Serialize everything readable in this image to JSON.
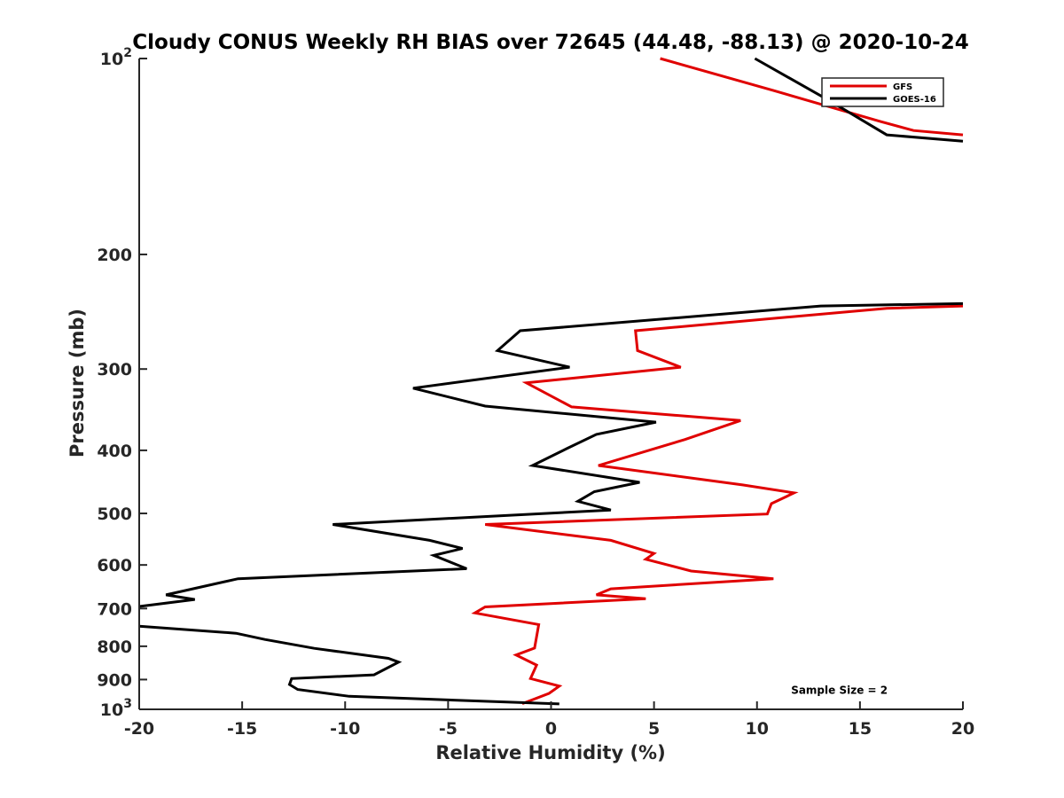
{
  "chart_data": {
    "type": "line",
    "title": "Cloudy CONUS Weekly RH BIAS over 72645 (44.48, -88.13) @ 2020-10-24",
    "xlabel": "Relative Humidity (%)",
    "ylabel": "Pressure (mb)",
    "xlim": [
      -20,
      20
    ],
    "ylim": [
      100,
      1000
    ],
    "y_scale": "log",
    "y_reversed": true,
    "grid": false,
    "legend_position": "top-right",
    "x_ticks": [
      "-20",
      "-15",
      "-10",
      "-5",
      "0",
      "5",
      "10",
      "15",
      "20"
    ],
    "y_ticks": [
      {
        "value": 100,
        "base": "10",
        "exp": "2"
      },
      {
        "value": 200,
        "label": "200"
      },
      {
        "value": 300,
        "label": "300"
      },
      {
        "value": 400,
        "label": "400"
      },
      {
        "value": 500,
        "label": "500"
      },
      {
        "value": 600,
        "label": "600"
      },
      {
        "value": 700,
        "label": "700"
      },
      {
        "value": 800,
        "label": "800"
      },
      {
        "value": 900,
        "label": "900"
      },
      {
        "value": 1000,
        "base": "10",
        "exp": "3"
      }
    ],
    "series": [
      {
        "name": "GFS",
        "color": "#e00000",
        "points": [
          [
            5.3,
            100
          ],
          [
            10.8,
            112
          ],
          [
            16.0,
            125
          ],
          [
            17.6,
            129
          ],
          [
            20,
            131
          ],
          [
            null,
            null
          ],
          [
            20,
            240
          ],
          [
            16.3,
            242
          ],
          [
            4.1,
            262
          ],
          [
            4.2,
            281
          ],
          [
            6.3,
            298
          ],
          [
            -1.2,
            315
          ],
          [
            1.0,
            343
          ],
          [
            9.2,
            360
          ],
          [
            6.5,
            385
          ],
          [
            2.3,
            422
          ],
          [
            9.3,
            452
          ],
          [
            11.8,
            465
          ],
          [
            10.7,
            483
          ],
          [
            10.5,
            501
          ],
          [
            -3.2,
            520
          ],
          [
            2.9,
            550
          ],
          [
            5.0,
            576
          ],
          [
            4.6,
            588
          ],
          [
            6.8,
            613
          ],
          [
            10.8,
            630
          ],
          [
            2.9,
            653
          ],
          [
            2.2,
            667
          ],
          [
            4.6,
            676
          ],
          [
            -3.2,
            696
          ],
          [
            -3.7,
            711
          ],
          [
            -0.6,
            741
          ],
          [
            -0.8,
            805
          ],
          [
            -1.7,
            825
          ],
          [
            -0.7,
            855
          ],
          [
            -1.0,
            897
          ],
          [
            0.4,
            921
          ],
          [
            -0.1,
            945
          ],
          [
            -1.4,
            980
          ]
        ]
      },
      {
        "name": "GOES-16",
        "color": "#000000",
        "points": [
          [
            9.9,
            100
          ],
          [
            13.5,
            116
          ],
          [
            16.3,
            131
          ],
          [
            20,
            134
          ],
          [
            null,
            null
          ],
          [
            20,
            238
          ],
          [
            13.1,
            240
          ],
          [
            -1.5,
            262
          ],
          [
            -2.6,
            281
          ],
          [
            0.9,
            298
          ],
          [
            -6.7,
            321
          ],
          [
            -3.2,
            342
          ],
          [
            5.1,
            362
          ],
          [
            2.2,
            378
          ],
          [
            0.8,
            397
          ],
          [
            -0.9,
            422
          ],
          [
            4.3,
            448
          ],
          [
            2.1,
            463
          ],
          [
            1.3,
            479
          ],
          [
            2.9,
            494
          ],
          [
            -10.6,
            520
          ],
          [
            -5.9,
            550
          ],
          [
            -4.3,
            566
          ],
          [
            -5.7,
            580
          ],
          [
            -4.1,
            608
          ],
          [
            -15.2,
            630
          ],
          [
            -18.7,
            667
          ],
          [
            -17.3,
            678
          ],
          [
            -20,
            695
          ],
          [
            null,
            null
          ],
          [
            -20,
            745
          ],
          [
            -15.3,
            764
          ],
          [
            -13.9,
            781
          ],
          [
            -11.5,
            806
          ],
          [
            -7.9,
            835
          ],
          [
            -7.4,
            846
          ],
          [
            -8.6,
            885
          ],
          [
            -12.6,
            897
          ],
          [
            -12.7,
            916
          ],
          [
            -12.3,
            932
          ],
          [
            -9.8,
            955
          ],
          [
            0.4,
            981
          ]
        ]
      }
    ],
    "annotations": [
      {
        "text": "Sample Size = 2",
        "x": 14.0,
        "y": 935
      }
    ]
  }
}
